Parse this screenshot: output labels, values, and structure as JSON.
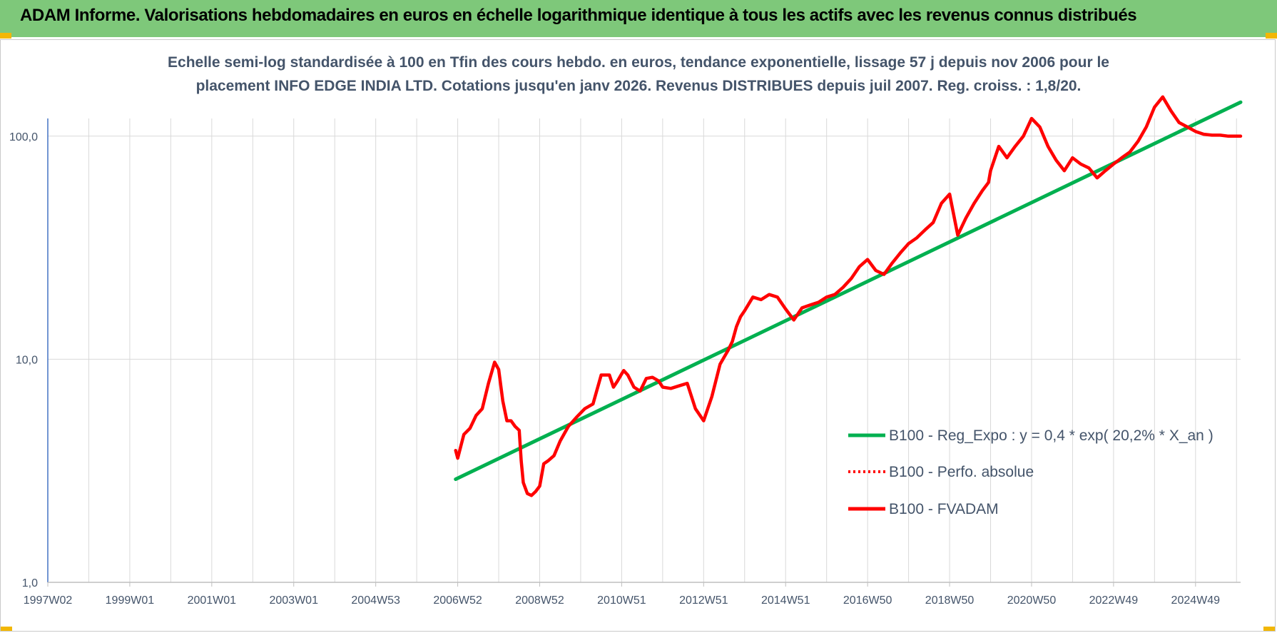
{
  "page": {
    "title": "ADAM Informe. Valorisations hebdomadaires en euros en échelle logarithmique identique à tous les actifs avec les revenus connus distribués"
  },
  "colors": {
    "header_bg": "#7ec87a",
    "regression": "#00b050",
    "fvadam": "#ff0000",
    "perfo": "#ff0000",
    "grid": "#d9d9d9",
    "axis_text": "#44546a"
  },
  "chart_data": {
    "type": "line",
    "title_lines": [
      "Echelle semi-log standardisée à 100 en Tfin des cours hebdo. en euros, tendance exponentielle, lissage 57 j depuis nov 2006 pour le",
      "placement INFO EDGE INDIA LTD. Cotations jusqu'en janv 2026. Revenus DISTRIBUES depuis juil 2007. Reg. croiss. : 1,8/20."
    ],
    "y_scale": "log",
    "ylim": [
      1,
      180
    ],
    "y_ticks": [
      {
        "value": 1,
        "label": "1,0"
      },
      {
        "value": 10,
        "label": "10,0"
      },
      {
        "value": 100,
        "label": "100,0"
      }
    ],
    "x_range": [
      1997.0,
      2026.1
    ],
    "x_ticks": [
      {
        "year": 1997.0,
        "label": "1997W02"
      },
      {
        "year": 1999.0,
        "label": "1999W01"
      },
      {
        "year": 2001.0,
        "label": "2001W01"
      },
      {
        "year": 2003.0,
        "label": "2003W01"
      },
      {
        "year": 2005.0,
        "label": "2004W53"
      },
      {
        "year": 2007.0,
        "label": "2006W52"
      },
      {
        "year": 2009.0,
        "label": "2008W52"
      },
      {
        "year": 2011.0,
        "label": "2010W51"
      },
      {
        "year": 2013.0,
        "label": "2012W51"
      },
      {
        "year": 2015.0,
        "label": "2014W51"
      },
      {
        "year": 2017.0,
        "label": "2016W50"
      },
      {
        "year": 2019.0,
        "label": "2018W50"
      },
      {
        "year": 2021.0,
        "label": "2020W50"
      },
      {
        "year": 2023.0,
        "label": "2022W49"
      },
      {
        "year": 2025.0,
        "label": "2024W49"
      }
    ],
    "grid": true,
    "legend_position": "right",
    "series": [
      {
        "name": "B100 - Reg_Expo : y = 0,4 * exp( 20,2% *  X_an )",
        "color": "#00b050",
        "style": "solid",
        "x": [
          2006.95,
          2026.1
        ],
        "y": [
          2.9,
          142
        ]
      },
      {
        "name": "B100 - Perfo. absolue",
        "color": "#ff0000",
        "style": "dotted",
        "x": [],
        "y": []
      },
      {
        "name": "B100 - FVADAM",
        "color": "#ff0000",
        "style": "solid",
        "x": [
          2006.95,
          2007.0,
          2007.15,
          2007.3,
          2007.45,
          2007.6,
          2007.75,
          2007.9,
          2008.0,
          2008.1,
          2008.2,
          2008.3,
          2008.4,
          2008.5,
          2008.55,
          2008.6,
          2008.7,
          2008.8,
          2008.9,
          2009.0,
          2009.1,
          2009.2,
          2009.35,
          2009.5,
          2009.7,
          2009.9,
          2010.1,
          2010.3,
          2010.5,
          2010.7,
          2010.8,
          2010.9,
          2011.0,
          2011.05,
          2011.15,
          2011.3,
          2011.45,
          2011.6,
          2011.75,
          2011.9,
          2012.0,
          2012.2,
          2012.4,
          2012.6,
          2012.8,
          2013.0,
          2013.2,
          2013.4,
          2013.6,
          2013.7,
          2013.8,
          2013.9,
          2014.0,
          2014.2,
          2014.4,
          2014.6,
          2014.8,
          2015.0,
          2015.2,
          2015.4,
          2015.6,
          2015.8,
          2016.0,
          2016.2,
          2016.4,
          2016.6,
          2016.8,
          2017.0,
          2017.2,
          2017.4,
          2017.6,
          2017.8,
          2018.0,
          2018.2,
          2018.4,
          2018.6,
          2018.8,
          2019.0,
          2019.2,
          2019.4,
          2019.6,
          2019.8,
          2019.95,
          2020.0,
          2020.2,
          2020.4,
          2020.6,
          2020.8,
          2021.0,
          2021.2,
          2021.4,
          2021.6,
          2021.8,
          2022.0,
          2022.2,
          2022.4,
          2022.6,
          2022.8,
          2023.0,
          2023.2,
          2023.4,
          2023.6,
          2023.8,
          2024.0,
          2024.2,
          2024.4,
          2024.6,
          2024.8,
          2025.0,
          2025.2,
          2025.4,
          2025.6,
          2025.8,
          2026.0,
          2026.1
        ],
        "y": [
          3.9,
          3.6,
          4.6,
          4.9,
          5.6,
          6.0,
          7.8,
          9.7,
          9.0,
          6.5,
          5.3,
          5.3,
          5.0,
          4.8,
          3.5,
          2.8,
          2.5,
          2.45,
          2.55,
          2.7,
          3.4,
          3.5,
          3.7,
          4.3,
          5.0,
          5.5,
          6.0,
          6.3,
          8.5,
          8.5,
          7.5,
          8.0,
          8.6,
          8.9,
          8.5,
          7.5,
          7.2,
          8.2,
          8.3,
          8.0,
          7.5,
          7.4,
          7.6,
          7.8,
          6.0,
          5.3,
          6.8,
          9.5,
          11.0,
          12.0,
          14.0,
          15.5,
          16.5,
          19.0,
          18.5,
          19.5,
          19.0,
          16.8,
          15.0,
          17.0,
          17.5,
          18.0,
          19.0,
          19.5,
          21.0,
          23.0,
          26.0,
          28.0,
          25.0,
          24.0,
          27.0,
          30.0,
          33.0,
          35.0,
          38.0,
          41.0,
          50.0,
          55.0,
          36.0,
          43.0,
          50.0,
          57.0,
          62.0,
          70.0,
          90.0,
          80.0,
          90.0,
          100.0,
          120.0,
          110.0,
          90.0,
          78.0,
          70.0,
          80.0,
          75.0,
          72.0,
          65.0,
          70.0,
          75.0,
          80.0,
          85.0,
          95.0,
          110.0,
          135.0,
          150.0,
          130.0,
          115.0,
          110.0,
          105.0,
          102.0,
          101.0,
          101.0,
          100.0,
          100.0,
          100.0
        ]
      }
    ]
  }
}
